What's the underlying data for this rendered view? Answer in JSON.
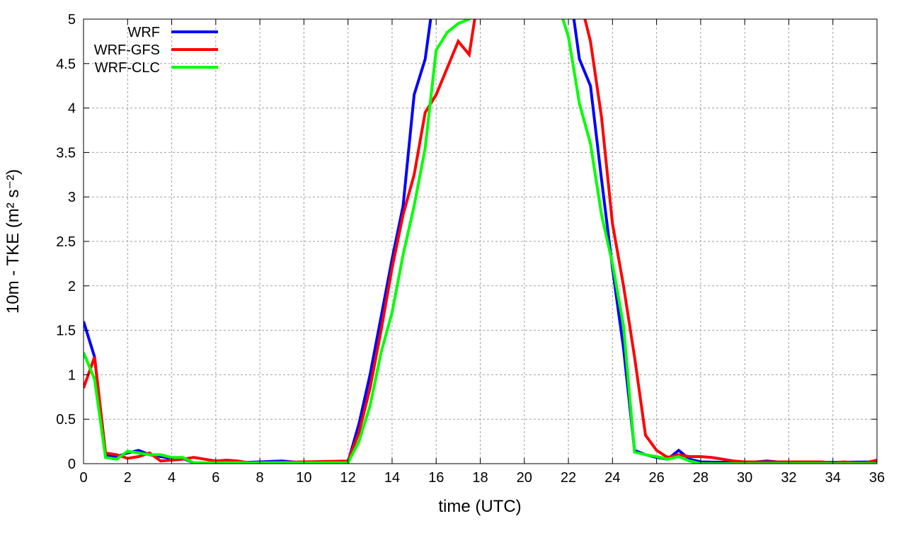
{
  "chart_data": {
    "type": "line",
    "title": "",
    "xlabel": "time (UTC)",
    "ylabel": "10m - TKE (m² s⁻²)",
    "xlim": [
      0,
      36
    ],
    "ylim": [
      0,
      5
    ],
    "xticks": [
      0,
      2,
      4,
      6,
      8,
      10,
      12,
      14,
      16,
      18,
      20,
      22,
      24,
      26,
      28,
      30,
      32,
      34,
      36
    ],
    "yticks": [
      0,
      0.5,
      1,
      1.5,
      2,
      2.5,
      3,
      3.5,
      4,
      4.5,
      5
    ],
    "ytick_labels": [
      "0",
      "0.5",
      "1",
      "1.5",
      "2",
      "2.5",
      "3",
      "3.5",
      "4",
      "4.5",
      "5"
    ],
    "grid": true,
    "legend_position": "top-left",
    "series": [
      {
        "name": "WRF",
        "color": "#0000ff",
        "x": [
          0,
          0.5,
          1,
          1.5,
          2,
          2.5,
          3,
          3.5,
          4,
          4.5,
          5,
          5.5,
          8,
          9,
          10,
          12,
          12.5,
          13,
          13.5,
          14,
          14.5,
          15,
          15.5,
          15.75,
          16,
          22,
          22.25,
          22.5,
          23,
          23.5,
          24,
          24.5,
          25,
          25.5,
          26,
          26.5,
          27,
          27.5,
          28,
          30,
          31,
          32,
          36
        ],
        "y": [
          1.6,
          1.2,
          0.1,
          0.08,
          0.12,
          0.15,
          0.1,
          0.08,
          0.06,
          0.06,
          0.01,
          0,
          0.02,
          0.03,
          0.01,
          0.02,
          0.45,
          1.0,
          1.65,
          2.3,
          2.9,
          4.15,
          4.55,
          5,
          6,
          6,
          5,
          4.55,
          4.25,
          3.2,
          2.2,
          1.3,
          0.15,
          0.1,
          0.07,
          0.05,
          0.15,
          0.05,
          0.02,
          0.01,
          0.03,
          0.01,
          0.02
        ]
      },
      {
        "name": "WRF-GFS",
        "color": "#ff0000",
        "x": [
          0,
          0.5,
          1,
          1.5,
          2,
          2.5,
          3,
          3.5,
          4,
          4.5,
          5,
          5.5,
          6,
          6.5,
          7,
          7.5,
          8,
          12,
          12.5,
          13,
          13.5,
          14,
          14.5,
          15,
          15.5,
          16,
          16.5,
          17,
          17.5,
          17.75,
          18,
          22.5,
          22.75,
          23,
          23.5,
          24,
          24.5,
          25,
          25.5,
          26,
          26.5,
          27,
          27.5,
          28,
          28.5,
          29,
          29.5,
          30,
          33.5,
          34,
          34.5,
          35,
          35.5,
          36
        ],
        "y": [
          0.85,
          1.2,
          0.12,
          0.1,
          0.06,
          0.08,
          0.12,
          0.03,
          0.04,
          0.05,
          0.07,
          0.05,
          0.03,
          0.04,
          0.03,
          0.01,
          0.01,
          0.03,
          0.35,
          0.85,
          1.5,
          2.2,
          2.8,
          3.25,
          3.95,
          4.15,
          4.45,
          4.75,
          4.6,
          5,
          6,
          6,
          5,
          4.75,
          3.9,
          2.7,
          2.0,
          1.2,
          0.32,
          0.15,
          0.07,
          0.1,
          0.08,
          0.08,
          0.07,
          0.05,
          0.03,
          0.02,
          0.02,
          0.01,
          0.02,
          0.01,
          0.01,
          0.04
        ]
      },
      {
        "name": "WRF-CLC",
        "color": "#00ff00",
        "x": [
          0,
          0.5,
          1,
          1.5,
          2,
          2.5,
          3,
          3.5,
          4,
          4.5,
          5,
          12,
          12.5,
          13,
          13.5,
          14,
          14.5,
          15,
          15.5,
          16,
          16.5,
          17,
          17.5,
          18,
          21.5,
          21.75,
          22,
          22.5,
          23,
          23.5,
          24,
          24.5,
          25,
          25.5,
          26,
          26.5,
          27,
          27.5,
          28,
          36
        ],
        "y": [
          1.25,
          0.95,
          0.07,
          0.05,
          0.14,
          0.12,
          0.1,
          0.1,
          0.07,
          0.07,
          0.01,
          0.01,
          0.25,
          0.65,
          1.25,
          1.7,
          2.35,
          2.9,
          3.55,
          4.65,
          4.85,
          4.95,
          5.0,
          6,
          6,
          5,
          4.8,
          4.05,
          3.6,
          2.8,
          2.25,
          1.55,
          0.13,
          0.1,
          0.08,
          0.05,
          0.08,
          0.03,
          0,
          0
        ]
      }
    ]
  }
}
